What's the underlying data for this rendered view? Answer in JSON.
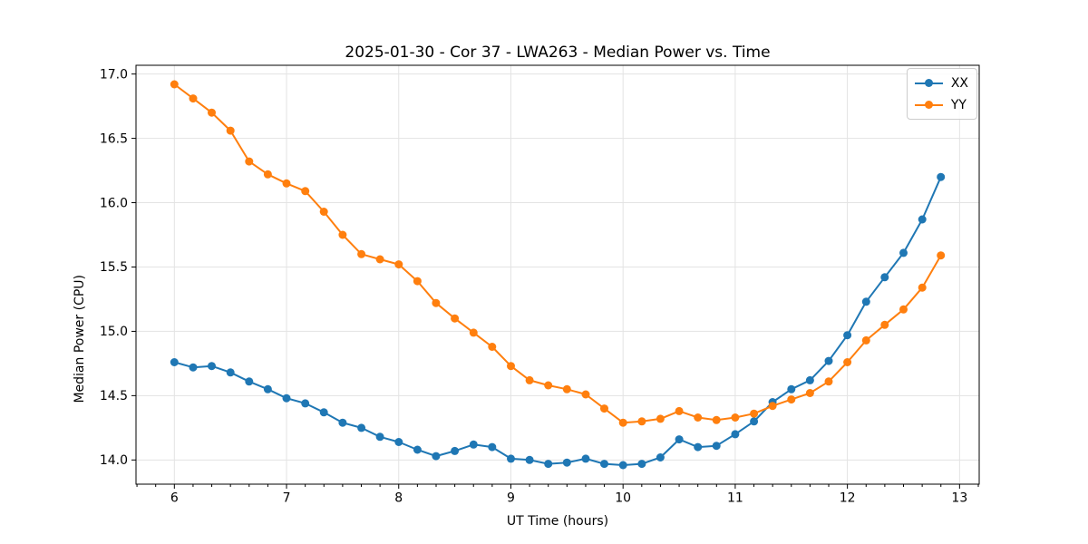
{
  "chart_data": {
    "type": "line",
    "title": "2025-01-30 - Cor 37 - LWA263 - Median Power vs. Time",
    "xlabel": "UT Time (hours)",
    "ylabel": "Median Power (CPU)",
    "xlim": [
      5.658,
      13.175
    ],
    "ylim": [
      13.812,
      17.068
    ],
    "xticks": [
      6,
      7,
      8,
      9,
      10,
      11,
      12,
      13
    ],
    "xtick_labels": [
      "6",
      "7",
      "8",
      "9",
      "10",
      "11",
      "12",
      "13"
    ],
    "yticks": [
      14.0,
      14.5,
      15.0,
      15.5,
      16.0,
      16.5,
      17.0
    ],
    "ytick_labels": [
      "14.0",
      "14.5",
      "15.0",
      "15.5",
      "16.0",
      "16.5",
      "17.0"
    ],
    "x_minor_tick_step": 0.16667,
    "grid": true,
    "grid_color": "#e3e3e3",
    "spine_color": "#000000",
    "legend_position": "upper right",
    "x": [
      6.0,
      6.167,
      6.333,
      6.5,
      6.667,
      6.833,
      7.0,
      7.167,
      7.333,
      7.5,
      7.667,
      7.833,
      8.0,
      8.167,
      8.333,
      8.5,
      8.667,
      8.833,
      9.0,
      9.167,
      9.333,
      9.5,
      9.667,
      9.833,
      10.0,
      10.167,
      10.333,
      10.5,
      10.667,
      10.833,
      11.0,
      11.167,
      11.333,
      11.5,
      11.667,
      11.833,
      12.0,
      12.167,
      12.333,
      12.5,
      12.667,
      12.833
    ],
    "series": [
      {
        "name": "XX",
        "color": "#1f77b4",
        "values": [
          14.76,
          14.72,
          14.73,
          14.68,
          14.61,
          14.55,
          14.48,
          14.44,
          14.37,
          14.29,
          14.25,
          14.18,
          14.14,
          14.08,
          14.03,
          14.07,
          14.12,
          14.1,
          14.01,
          14.0,
          13.97,
          13.98,
          14.01,
          13.97,
          13.96,
          13.97,
          14.02,
          14.16,
          14.1,
          14.11,
          14.2,
          14.3,
          14.45,
          14.55,
          14.62,
          14.77,
          14.97,
          15.23,
          15.42,
          15.61,
          15.87,
          16.2
        ]
      },
      {
        "name": "YY",
        "color": "#ff7f0e",
        "values": [
          16.92,
          16.81,
          16.7,
          16.56,
          16.32,
          16.22,
          16.15,
          16.09,
          15.93,
          15.75,
          15.6,
          15.56,
          15.52,
          15.39,
          15.22,
          15.1,
          14.99,
          14.88,
          14.73,
          14.62,
          14.58,
          14.55,
          14.51,
          14.4,
          14.29,
          14.3,
          14.32,
          14.38,
          14.33,
          14.31,
          14.33,
          14.36,
          14.42,
          14.47,
          14.52,
          14.61,
          14.76,
          14.93,
          15.05,
          15.17,
          15.34,
          15.59
        ]
      }
    ]
  }
}
